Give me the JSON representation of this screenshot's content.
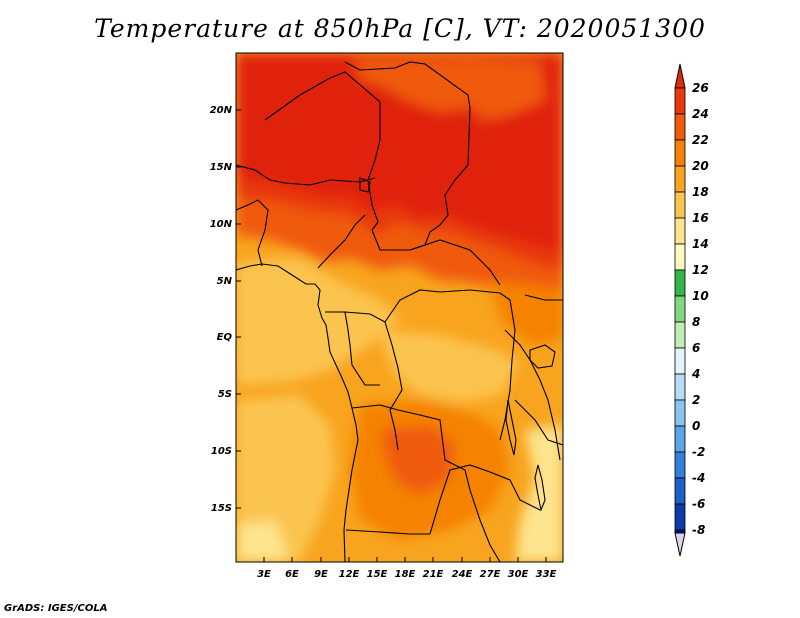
{
  "title": "Temperature at 850hPa [C], VT: 2020051300",
  "credit": "GrADS: IGES/COLA",
  "map": {
    "lat_labels": [
      "20N",
      "15N",
      "10N",
      "5N",
      "EQ",
      "5S",
      "10S",
      "15S"
    ],
    "lon_labels": [
      "3E",
      "6E",
      "9E",
      "12E",
      "15E",
      "18E",
      "21E",
      "24E",
      "27E",
      "30E",
      "33E"
    ]
  },
  "colorbar": {
    "labels": [
      "26",
      "24",
      "22",
      "20",
      "18",
      "16",
      "14",
      "12",
      "10",
      "8",
      "6",
      "4",
      "2",
      "0",
      "-2",
      "-4",
      "-6",
      "-8"
    ],
    "colors": {
      "max_arrow": "#e02a10",
      "c24_26": "#e8380c",
      "c22_24": "#f05a08",
      "c20_22": "#f58206",
      "c18_20": "#f8a41e",
      "c16_18": "#fbc450",
      "c14_16": "#fde48e",
      "c12_14": "#fff8c0",
      "c10_12": "#34b64a",
      "c8_10": "#80d880",
      "c6_8": "#c2ecb6",
      "c4_6": "#e4f5fa",
      "c2_4": "#b6dcf8",
      "c0_2": "#8cc4f0",
      "cm2_0": "#5ca4e6",
      "cm4_m2": "#3480d8",
      "cm6_m4": "#1d60c8",
      "cm8_m6": "#0c3ca8",
      "min_segment": "#08107a",
      "min_arrow": "#dad4f0"
    }
  }
}
